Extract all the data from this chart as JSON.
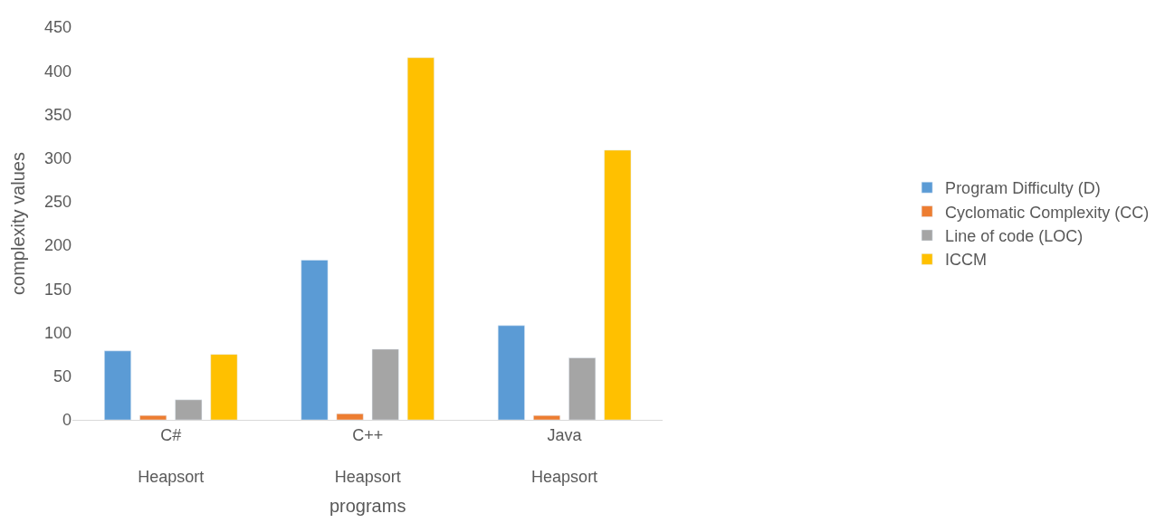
{
  "chart_data": {
    "type": "bar",
    "xlabel": "programs",
    "ylabel": "complexity values",
    "categories": [
      "C#\nHeapsort",
      "C++\nHeapsort",
      "Java\nHeapsort"
    ],
    "series": [
      {
        "name": "Program Difficulty (D)",
        "color": "#5b9bd5",
        "values": [
          79,
          183,
          108
        ]
      },
      {
        "name": "Cyclomatic Complexity (CC)",
        "color": "#ed7d31",
        "values": [
          5,
          7,
          5
        ]
      },
      {
        "name": "Line of code (LOC)",
        "color": "#a5a5a5",
        "values": [
          23,
          81,
          71
        ]
      },
      {
        "name": "ICCM",
        "color": "#ffc000",
        "values": [
          75,
          415,
          309
        ]
      }
    ],
    "ylim": [
      0,
      450
    ],
    "yticks": [
      0,
      50,
      100,
      150,
      200,
      250,
      300,
      350,
      400,
      450
    ],
    "grid": false,
    "legend": "right"
  }
}
